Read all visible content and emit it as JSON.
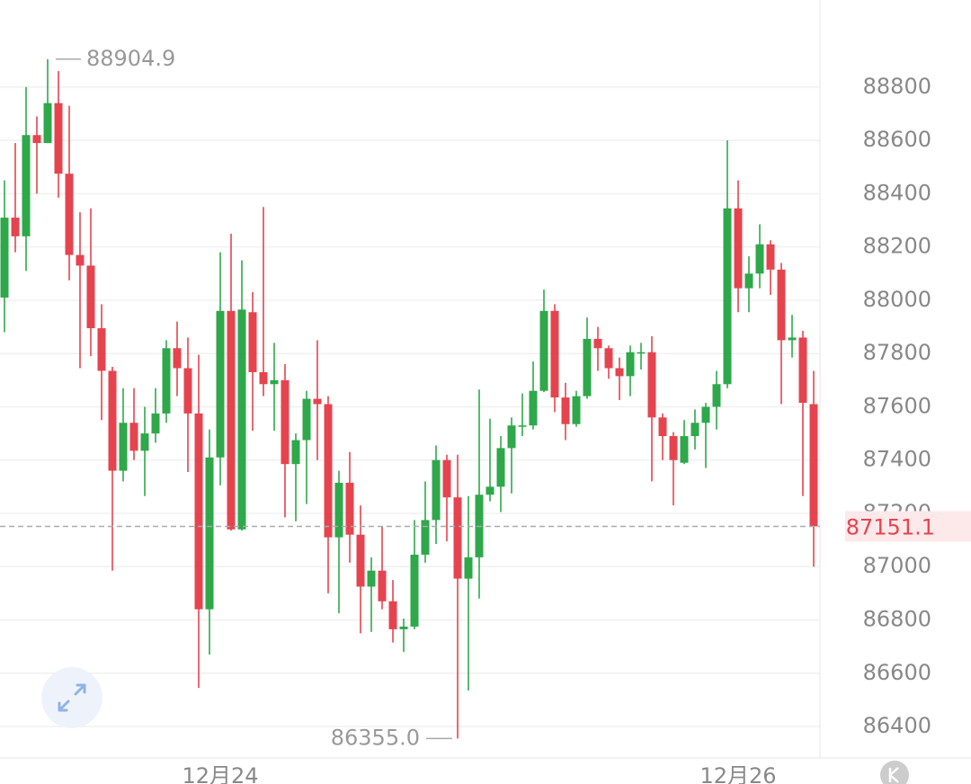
{
  "chart_data": {
    "type": "candlestick",
    "up_color": "#2ea84a",
    "down_color": "#e5444f",
    "grid": true,
    "categories": [
      null,
      null,
      null,
      null,
      null,
      null,
      null,
      null,
      null,
      null,
      null,
      null,
      null,
      null,
      null,
      null,
      null,
      null,
      null,
      null,
      "12月24",
      null,
      null,
      null,
      null,
      null,
      null,
      null,
      null,
      null,
      null,
      null,
      null,
      null,
      null,
      null,
      null,
      null,
      null,
      null,
      null,
      null,
      null,
      null,
      null,
      null,
      null,
      null,
      null,
      null,
      null,
      null,
      null,
      null,
      null,
      null,
      null,
      null,
      null,
      null,
      null,
      null,
      null,
      null,
      null,
      null,
      null,
      null,
      "12月26",
      null,
      null,
      null,
      null,
      null,
      null,
      null
    ],
    "open": [
      88010,
      88310,
      88240,
      88620,
      88590,
      88740,
      88475,
      88170,
      88130,
      87895,
      87735,
      87360,
      87540,
      87435,
      87500,
      87575,
      87820,
      87745,
      87575,
      86840,
      87410,
      87960,
      87140,
      87955,
      87730,
      87685,
      87700,
      87385,
      87475,
      87630,
      87610,
      87110,
      87315,
      87120,
      86925,
      86985,
      86870,
      86765,
      86775,
      87045,
      87175,
      87400,
      87260,
      86955,
      87035,
      87270,
      87300,
      87445,
      87525,
      87530,
      87660,
      87960,
      87635,
      87535,
      87640,
      87855,
      87820,
      87745,
      87715,
      87800,
      87805,
      87560,
      87490,
      87390,
      87490,
      87540,
      87600,
      87685,
      88345,
      88045,
      88100,
      88210,
      88115,
      87850,
      87860,
      87610
    ],
    "high": [
      88450,
      88590,
      88800,
      88690,
      88904.9,
      88860,
      88730,
      88330,
      88345,
      87985,
      87750,
      87670,
      87670,
      87600,
      87670,
      87850,
      87920,
      87860,
      87795,
      87515,
      88180,
      88250,
      88150,
      88030,
      88350,
      87840,
      87760,
      87500,
      87660,
      87850,
      87640,
      87360,
      87430,
      87230,
      87035,
      87150,
      86950,
      86805,
      87175,
      87320,
      87455,
      87420,
      87420,
      87265,
      87665,
      87555,
      87490,
      87560,
      87650,
      87770,
      88040,
      87985,
      87690,
      87660,
      87935,
      87900,
      87830,
      87785,
      87830,
      87840,
      87865,
      87575,
      87505,
      87550,
      87590,
      87615,
      87735,
      88600,
      88450,
      88165,
      88285,
      88225,
      88140,
      87945,
      87885,
      87735
    ],
    "low": [
      87880,
      88180,
      88110,
      88400,
      88590,
      88385,
      88075,
      87745,
      87790,
      87550,
      86985,
      87320,
      87400,
      87265,
      87465,
      87540,
      87640,
      87355,
      86545,
      86670,
      87305,
      87135,
      87135,
      87510,
      87640,
      87510,
      87185,
      87170,
      87235,
      87400,
      86900,
      86825,
      87015,
      86750,
      86755,
      86840,
      86715,
      86680,
      86765,
      87015,
      87085,
      87095,
      86355,
      86535,
      86880,
      87245,
      87205,
      87275,
      87490,
      87515,
      87655,
      87580,
      87475,
      87525,
      87630,
      87735,
      87705,
      87625,
      87640,
      87740,
      87320,
      87400,
      87230,
      87385,
      87440,
      87370,
      87515,
      87670,
      87955,
      87955,
      88045,
      88020,
      87610,
      87785,
      87265,
      87000
    ],
    "close": [
      88310,
      88240,
      88620,
      88590,
      88740,
      88475,
      88170,
      88130,
      87895,
      87735,
      87360,
      87540,
      87435,
      87500,
      87575,
      87820,
      87745,
      87575,
      86840,
      87410,
      87960,
      87140,
      87965,
      87730,
      87685,
      87700,
      87385,
      87475,
      87630,
      87610,
      87110,
      87315,
      87120,
      86925,
      86985,
      86870,
      86765,
      86775,
      87045,
      87175,
      87400,
      87260,
      86955,
      87035,
      87270,
      87300,
      87445,
      87530,
      87530,
      87660,
      87960,
      87635,
      87535,
      87640,
      87855,
      87820,
      87745,
      87715,
      87805,
      87805,
      87560,
      87490,
      87400,
      87490,
      87540,
      87600,
      87685,
      88345,
      88045,
      88100,
      88210,
      88115,
      87850,
      87860,
      87615,
      87151.1
    ],
    "ylim": [
      86282,
      89127
    ],
    "yticks": [
      86400,
      86600,
      86800,
      87000,
      87200,
      87400,
      87600,
      87800,
      88000,
      88200,
      88400,
      88600,
      88800
    ],
    "max_marker": {
      "value": 88904.9,
      "label": "88904.9"
    },
    "min_marker": {
      "value": 86355,
      "label": "86355.0"
    },
    "last_price": {
      "value": 87151.1,
      "label": "87151.1"
    }
  }
}
